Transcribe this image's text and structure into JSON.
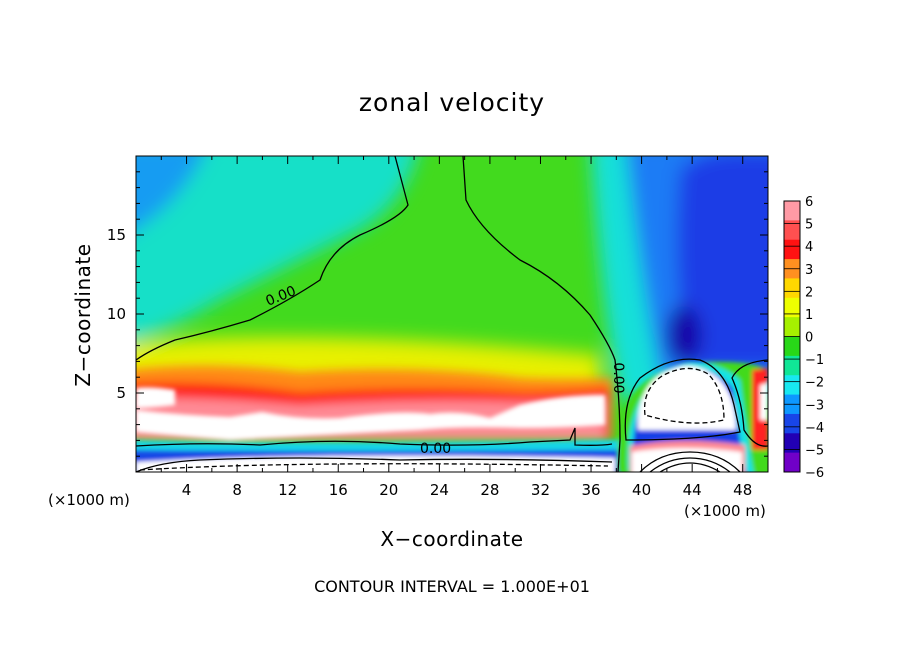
{
  "figure": {
    "title": "zonal velocity",
    "xlabel": "X−coordinate",
    "ylabel": "Z−coordinate",
    "footnote": "CONTOUR INTERVAL = 1.000E+01",
    "x_unit_left": "(×1000 m)",
    "x_unit_right": "(×1000 m)"
  },
  "chart_data": {
    "type": "heatmap",
    "title": "zonal velocity",
    "xlabel": "X−coordinate",
    "ylabel": "Z−coordinate",
    "x_unit": "(×1000 m)",
    "xlim": [
      0,
      50
    ],
    "ylim": [
      0,
      20
    ],
    "x_ticks": [
      4,
      8,
      12,
      16,
      20,
      24,
      28,
      32,
      36,
      40,
      44,
      48
    ],
    "y_ticks": [
      5,
      10,
      15
    ],
    "x_tick_labels": [
      "4",
      "8",
      "12",
      "16",
      "20",
      "24",
      "28",
      "32",
      "36",
      "40",
      "44",
      "48"
    ],
    "y_tick_labels": [
      "5",
      "10",
      "15"
    ],
    "colorbar": {
      "range": [
        -6,
        6
      ],
      "tick_labels": [
        "6",
        "5",
        "4",
        "3",
        "2",
        "1",
        "0",
        "−1",
        "−2",
        "−3",
        "−4",
        "−5",
        "−6"
      ],
      "colors_high_to_low": [
        "#ff9aa5",
        "#ff5050",
        "#ff1212",
        "#ff9020",
        "#ffd800",
        "#eeff00",
        "#a6f000",
        "#28d818",
        "#10e696",
        "#18e8f0",
        "#0d98ff",
        "#1845e8",
        "#2200b4",
        "#7000c8"
      ]
    },
    "contour_interval": "1.000E+01",
    "contour_labels": [
      "0.00",
      "0.00",
      "0.00"
    ]
  }
}
